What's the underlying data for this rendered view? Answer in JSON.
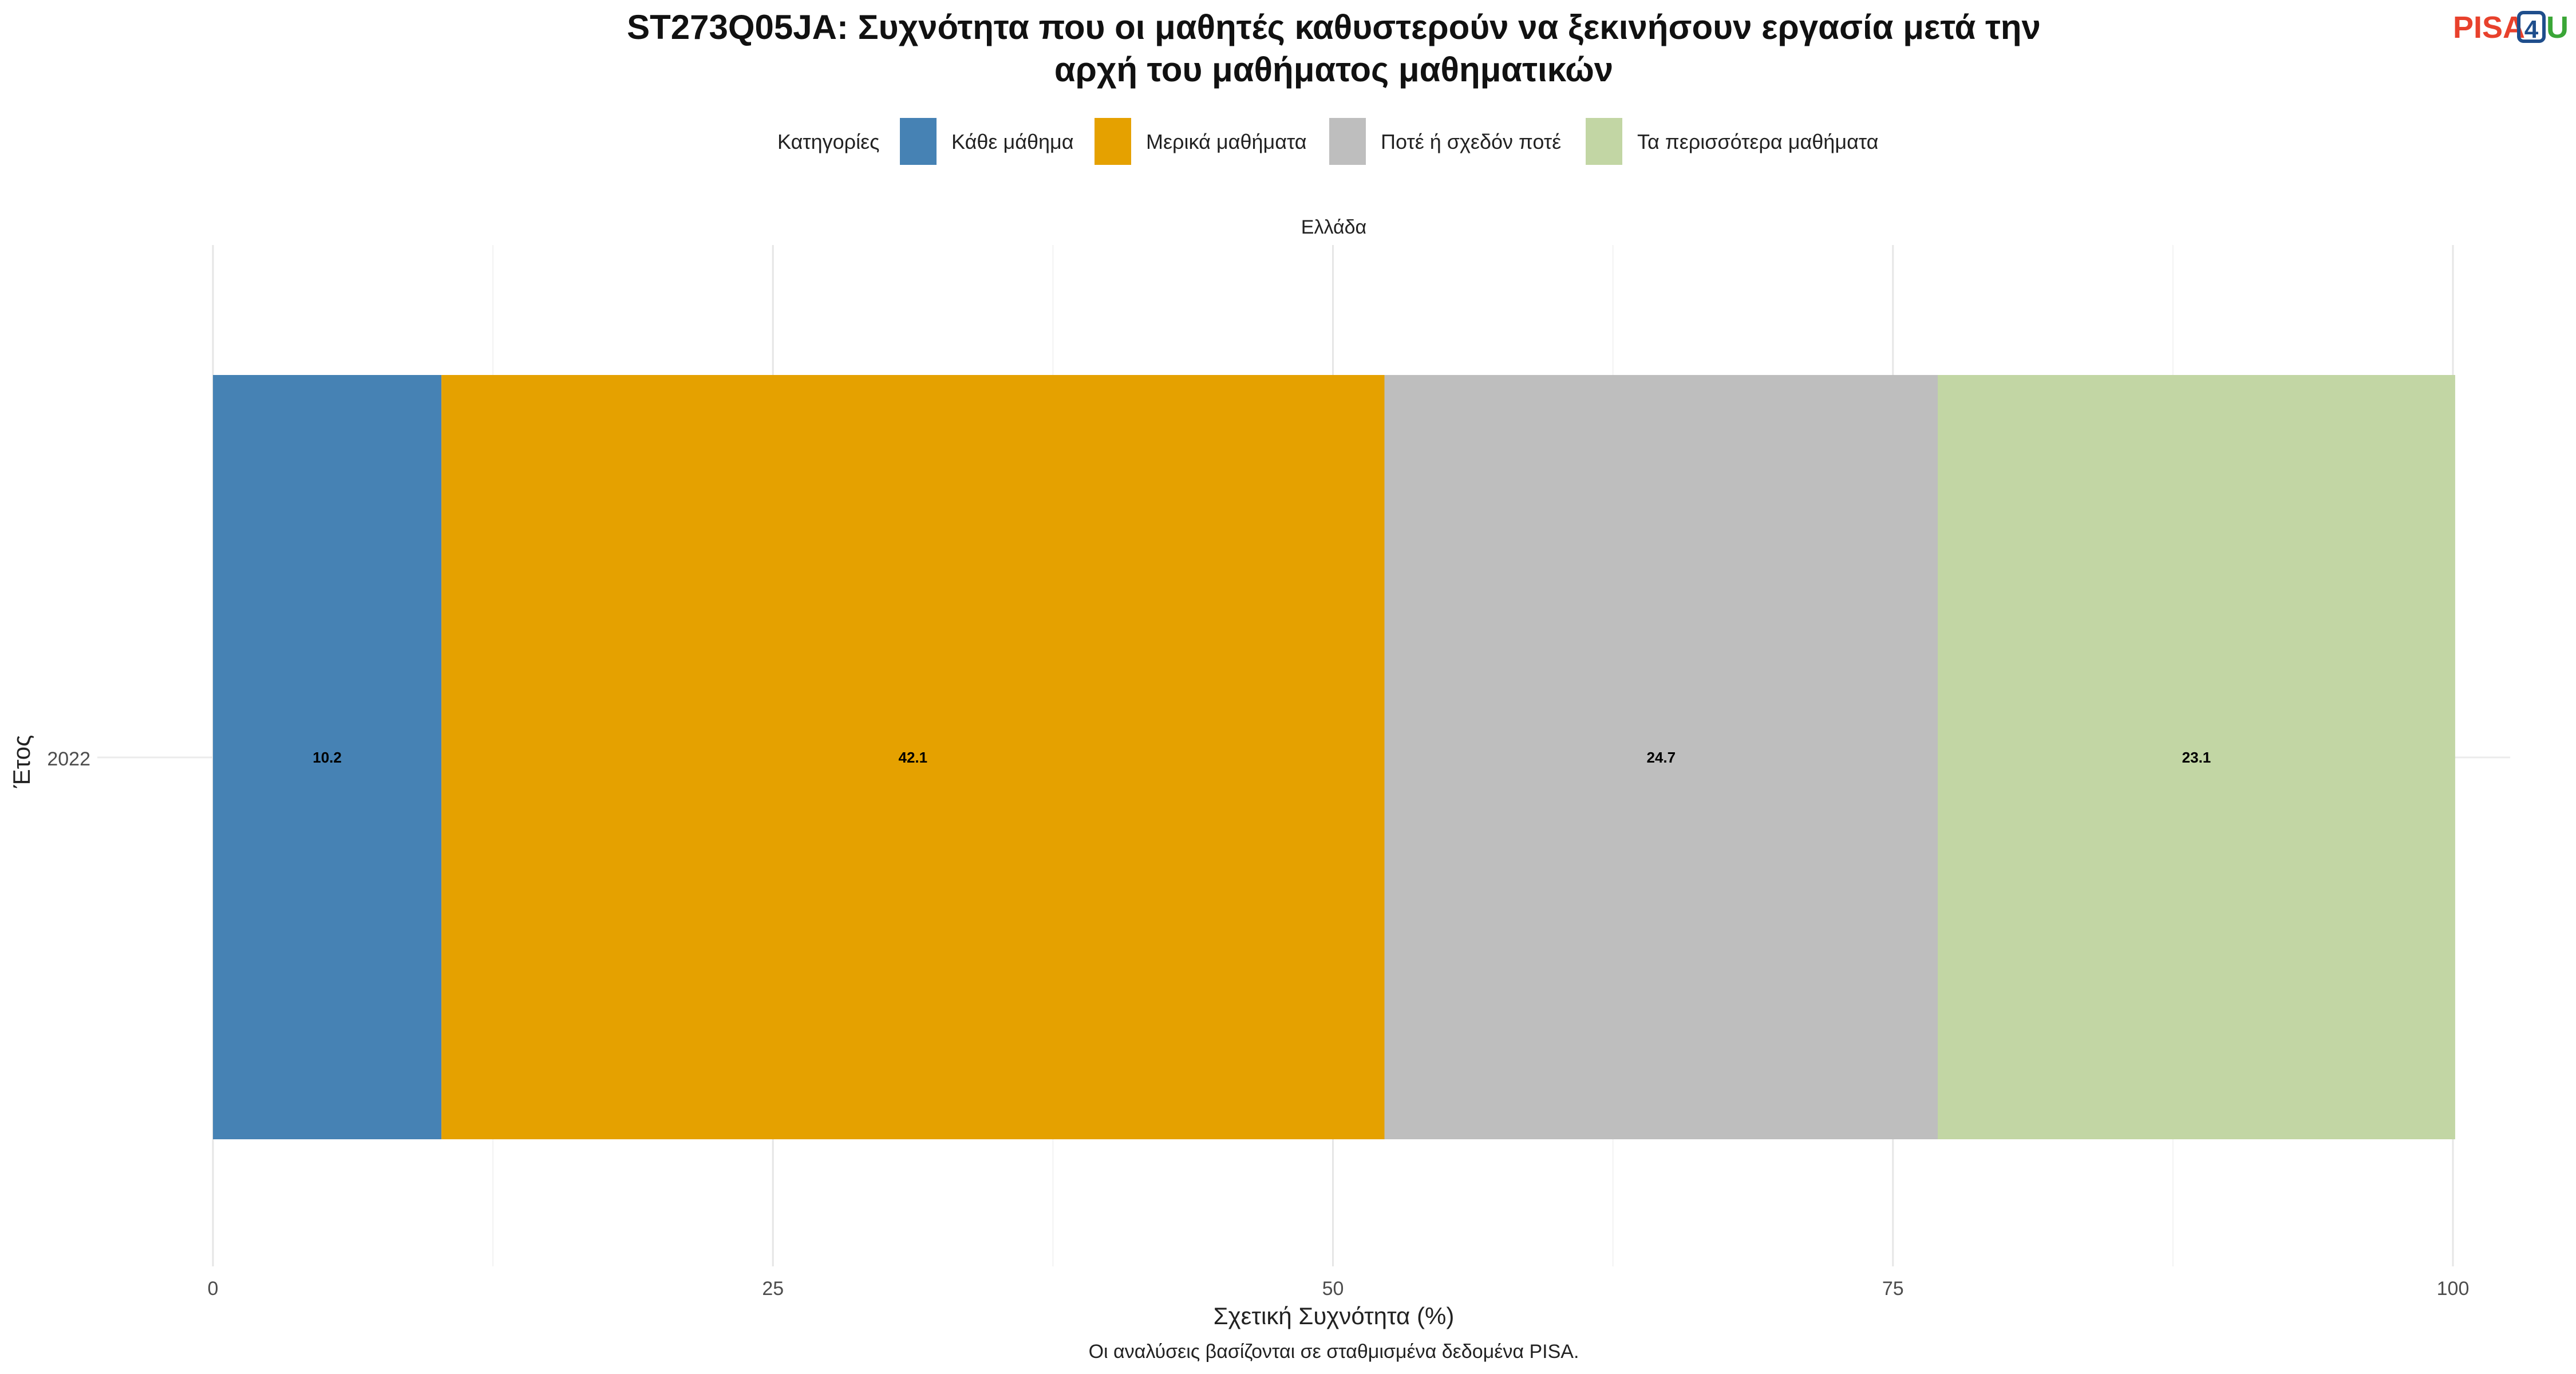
{
  "logo": {
    "part1": "PISA",
    "part2": "4",
    "part3": "U",
    "color_red": "#e8412c",
    "color_blue": "#1f4e8c",
    "color_green": "#3aa637"
  },
  "chart_data": {
    "type": "bar",
    "orientation": "horizontal",
    "stacked": true,
    "title_lines": [
      "ST273Q05JA: Συχνότητα που οι μαθητές καθυστερούν να ξεκινήσουν εργασία μετά την",
      "αρχή του μαθήματος μαθηματικών"
    ],
    "legend": {
      "title": "Κατηγορίες",
      "placement": "top",
      "entries": [
        {
          "label": "Κάθε μάθημα",
          "color": "#4682b4"
        },
        {
          "label": "Μερικά μαθήματα",
          "color": "#e5a100"
        },
        {
          "label": "Ποτέ ή σχεδόν ποτέ",
          "color": "#bebebe"
        },
        {
          "label": "Τα περισσότερα μαθήματα",
          "color": "#c2d6a4"
        }
      ]
    },
    "facet": "Ελλάδα",
    "categories": [
      "2022"
    ],
    "series": [
      {
        "name": "Κάθε μάθημα",
        "values": [
          10.2
        ],
        "color": "#4682b4"
      },
      {
        "name": "Μερικά μαθήματα",
        "values": [
          42.1
        ],
        "color": "#e5a100"
      },
      {
        "name": "Ποτέ ή σχεδόν ποτέ",
        "values": [
          24.7
        ],
        "color": "#bebebe"
      },
      {
        "name": "Τα περισσότερα μαθήματα",
        "values": [
          23.1
        ],
        "color": "#c2d6a4"
      }
    ],
    "data_labels": [
      "10.2",
      "42.1",
      "24.7",
      "23.1"
    ],
    "xlabel": "Σχετική Συχνότητα (%)",
    "ylabel": "Έτος",
    "xlim": [
      0,
      100
    ],
    "xticks": [
      0,
      25,
      50,
      75,
      100
    ],
    "xtick_labels": [
      "0",
      "25",
      "50",
      "75",
      "100"
    ],
    "grid": true,
    "caption": "Οι αναλύσεις βασίζονται σε σταθμισμένα δεδομένα PISA."
  }
}
